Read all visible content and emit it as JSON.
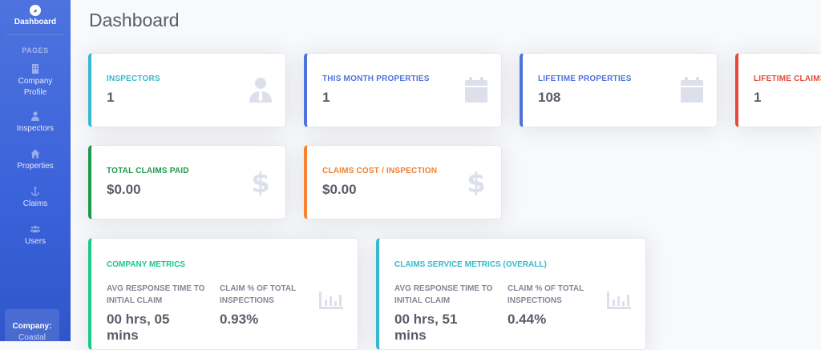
{
  "sidebar": {
    "brand_label": "Dashboard",
    "brand_icon": "dashboard-icon",
    "heading": "PAGES",
    "items": [
      {
        "label": "Company Profile",
        "icon": "building-icon"
      },
      {
        "label": "Inspectors",
        "icon": "user-tie-icon"
      },
      {
        "label": "Properties",
        "icon": "house-icon"
      },
      {
        "label": "Claims",
        "icon": "anchor-icon"
      },
      {
        "label": "Users",
        "icon": "users-icon"
      }
    ],
    "company_key": "Company:",
    "company_value": "Coastal"
  },
  "page": {
    "title": "Dashboard"
  },
  "stats": [
    {
      "label": "INSPECTORS",
      "value": "1",
      "icon": "user-tie-icon",
      "color": "#36b9cc"
    },
    {
      "label": "THIS MONTH PROPERTIES",
      "value": "1",
      "icon": "calendar-icon",
      "color": "#4e73df"
    },
    {
      "label": "LIFETIME PROPERTIES",
      "value": "108",
      "icon": "calendar-icon",
      "color": "#4e73df"
    },
    {
      "label": "LIFETIME CLAIMS",
      "value": "1",
      "icon": "calendar-icon",
      "color": "#e74a3b"
    },
    {
      "label": "TOTAL CLAIMS PAID",
      "value": "$0.00",
      "icon": "dollar-icon",
      "color": "#1a9a4a"
    },
    {
      "label": "CLAIMS COST / INSPECTION",
      "value": "$0.00",
      "icon": "dollar-icon",
      "color": "#f07f2d"
    }
  ],
  "metrics": [
    {
      "title": "COMPANY METRICS",
      "color": "#1cc88a",
      "col1_label": "AVG RESPONSE TIME TO INITIAL CLAIM",
      "col1_value": "00 hrs, 05 mins",
      "col2_label": "CLAIM % OF TOTAL INSPECTIONS",
      "col2_value": "0.93%",
      "icon": "bar-chart-icon"
    },
    {
      "title": "CLAIMS SERVICE METRICS (OVERALL)",
      "color": "#36b9cc",
      "col1_label": "AVG RESPONSE TIME TO INITIAL CLAIM",
      "col1_value": "00 hrs, 51 mins",
      "col2_label": "CLAIM % OF TOTAL INSPECTIONS",
      "col2_value": "0.44%",
      "icon": "bar-chart-icon"
    }
  ]
}
